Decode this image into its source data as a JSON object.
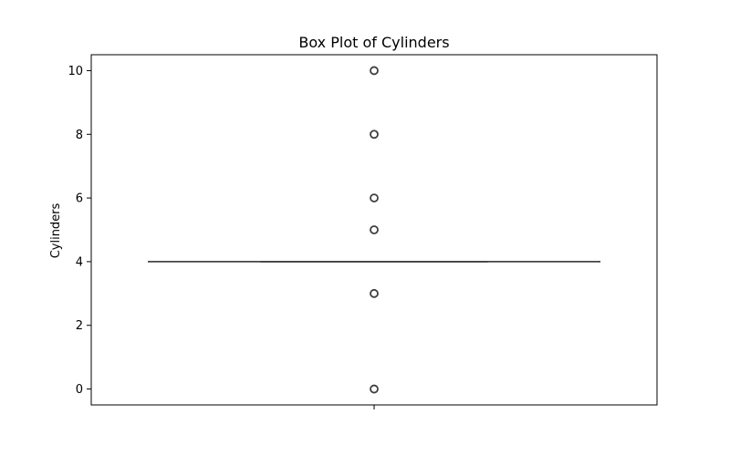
{
  "chart_data": {
    "type": "box",
    "title": "Box Plot of Cylinders",
    "xlabel": "",
    "ylabel": "Cylinders",
    "ylim": [
      -0.5,
      10.5
    ],
    "yticks": [
      0,
      2,
      4,
      6,
      8,
      10
    ],
    "series": [
      {
        "name": "Cylinders",
        "whisker_low": 4,
        "q1": 4,
        "median": 4,
        "q3": 4,
        "whisker_high": 4,
        "outliers": [
          0,
          3,
          5,
          6,
          8,
          10
        ]
      }
    ]
  },
  "colors": {
    "box_line": "#3f3f3f",
    "axes": "#000000",
    "outlier_edge": "#3f3f3f"
  }
}
